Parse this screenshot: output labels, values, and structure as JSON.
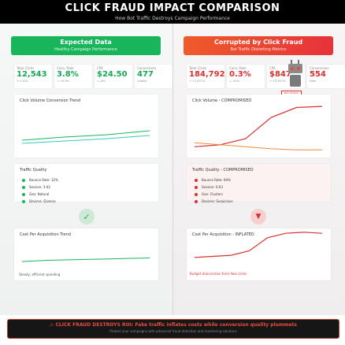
{
  "header": {
    "title": "CLICK FRAUD IMPACT COMPARISON",
    "subtitle": "How Bot Traffic Destroys Campaign Performance"
  },
  "left": {
    "banner_title": "Expected Data",
    "banner_sub": "Healthy Campaign Performance",
    "kpis": [
      {
        "label": "Total Clicks",
        "value": "12,543",
        "delta": "↗ +12%"
      },
      {
        "label": "Conv. Rate",
        "value": "3.8%",
        "delta": "↗ +0.5%"
      },
      {
        "label": "CPA",
        "value": "$24.50",
        "delta": "↘ -8%"
      },
      {
        "label": "Conversions",
        "value": "477",
        "delta": "Quality"
      }
    ],
    "chart1_title": "Click Volume Conversion Trend",
    "traffic_title": "Traffic Quality",
    "traffic": [
      "Bounce Rate: 32%",
      "Session: 3:42",
      "Geo: Natural",
      "Devices: Diverse"
    ],
    "cpa_title": "Cost Per Acquisition Trend",
    "cpa_note": "Steady, efficient spending"
  },
  "right": {
    "banner_title": "Corrupted by Click Fraud",
    "banner_sub": "Bot Traffic Distorting Metrics",
    "kpis": [
      {
        "label": "Total Clicks",
        "value": "184,792",
        "delta": "↗ +1,471%"
      },
      {
        "label": "Conv. Rate",
        "value": "0.3%",
        "delta": "↘ -92%"
      },
      {
        "label": "CPA",
        "value": "$847",
        "delta": "↗ +3,357%"
      },
      {
        "label": "Conversions",
        "value": "554",
        "delta": "Fake"
      }
    ],
    "chart1_title": "Click Volume - COMPROMISED",
    "tag_line1": "BOT ATTACK",
    "tag_line2": "BOT 99%",
    "traffic_title": "Traffic Quality - COMPROMISED",
    "traffic": [
      "Bounce Rate: 94%",
      "Session: 0:03",
      "Geo: Clusters",
      "Devices: Suspicious"
    ],
    "cpa_title": "Cost Per Acquisition - INFLATED",
    "cpa_note": "Budget drain/action from fake clicks"
  },
  "footer": {
    "title": "⚠ CLICK FRAUD DESTROYS ROI: Fake traffic inflates costs while conversion quality plummets",
    "sub": "Protect your campaigns with advanced fraud detection and monitoring solutions"
  },
  "colors": {
    "green": "#18b55a",
    "red": "#e8323a",
    "orange": "#ee5b2b",
    "teal": "#3cc7c0"
  },
  "icons": {
    "check": "check-icon",
    "warning": "warning-icon",
    "bot": "robot-icon"
  },
  "chart_data": [
    {
      "type": "line",
      "title": "Click Volume Conversion Trend",
      "series": [
        {
          "values": [
            10,
            14,
            17,
            22
          ]
        },
        {
          "values": [
            6,
            9,
            12,
            16
          ]
        }
      ]
    },
    {
      "type": "line",
      "title": "Click Volume - COMPROMISED",
      "series": [
        {
          "values": [
            6,
            8,
            14,
            35,
            45,
            46
          ]
        },
        {
          "values": [
            10,
            8,
            6,
            4,
            3,
            3
          ]
        }
      ]
    },
    {
      "type": "line",
      "title": "Cost Per Acquisition Trend",
      "series": [
        {
          "values": [
            8,
            10,
            11,
            12,
            13,
            14
          ]
        }
      ]
    },
    {
      "type": "line",
      "title": "Cost Per Acquisition - INFLATED",
      "series": [
        {
          "values": [
            8,
            9,
            10,
            14,
            26,
            30,
            31,
            30
          ]
        }
      ]
    }
  ]
}
